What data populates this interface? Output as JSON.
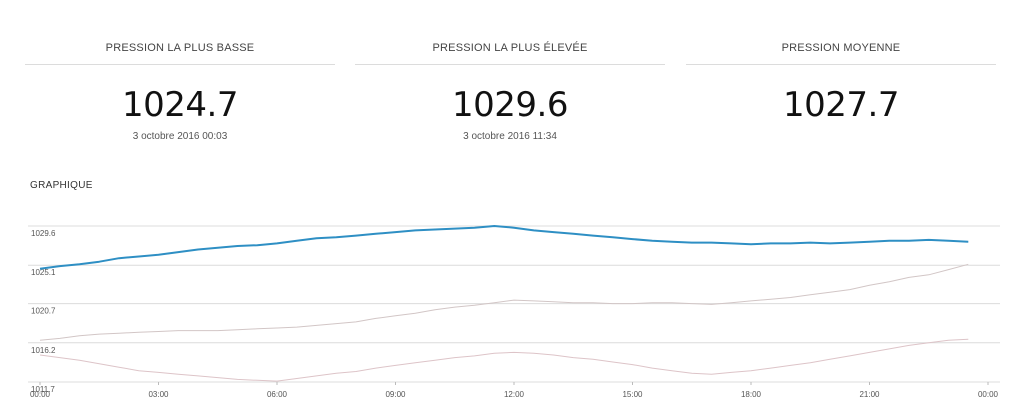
{
  "stats": {
    "low": {
      "label": "PRESSION LA PLUS BASSE",
      "value": "1024.7",
      "date": "3 octobre 2016 00:03"
    },
    "high": {
      "label": "PRESSION LA PLUS ÉLEVÉE",
      "value": "1029.6",
      "date": "3 octobre 2016 11:34"
    },
    "avg": {
      "label": "PRESSION MOYENNE",
      "value": "1027.7",
      "date": ""
    }
  },
  "section_title": "GRAPHIQUE",
  "colors": {
    "main": "#2e8fc4",
    "previous_1": "#d2c6c6",
    "previous_2": "#ddc4c8",
    "grid": "#dcdcdc"
  },
  "chart_data": {
    "type": "line",
    "xlabel": "",
    "ylabel": "",
    "x_ticks": [
      "00:00",
      "03:00",
      "06:00",
      "09:00",
      "12:00",
      "15:00",
      "18:00",
      "21:00",
      "00:00"
    ],
    "y_ticks": [
      "1011.7",
      "1016.2",
      "1020.7",
      "1025.1",
      "1029.6"
    ],
    "ylim": [
      1011.7,
      1029.6
    ],
    "xlim": [
      0,
      24
    ],
    "grid": true,
    "series": [
      {
        "x": [
          0,
          0.5,
          1,
          1.5,
          2,
          2.5,
          3,
          3.5,
          4,
          4.5,
          5,
          5.5,
          6,
          6.5,
          7,
          7.5,
          8,
          8.5,
          9,
          9.5,
          10,
          10.5,
          11,
          11.5,
          12,
          12.5,
          13,
          13.5,
          14,
          14.5,
          15,
          15.5,
          16,
          16.5,
          17,
          17.5,
          18,
          18.5,
          19,
          19.5,
          20,
          20.5,
          21,
          21.5,
          22,
          22.5,
          23,
          23.5
        ],
        "values": [
          1024.7,
          1025.0,
          1025.2,
          1025.5,
          1025.9,
          1026.1,
          1026.3,
          1026.6,
          1026.9,
          1027.1,
          1027.3,
          1027.4,
          1027.6,
          1027.9,
          1028.2,
          1028.3,
          1028.5,
          1028.7,
          1028.9,
          1029.1,
          1029.2,
          1029.3,
          1029.4,
          1029.6,
          1029.4,
          1029.1,
          1028.9,
          1028.7,
          1028.5,
          1028.3,
          1028.1,
          1027.9,
          1027.8,
          1027.7,
          1027.7,
          1027.6,
          1027.5,
          1027.6,
          1027.6,
          1027.7,
          1027.6,
          1027.7,
          1027.8,
          1027.9,
          1027.9,
          1028.0,
          1027.9,
          1027.8
        ]
      },
      {
        "x": [
          0,
          0.5,
          1,
          1.5,
          2,
          2.5,
          3,
          3.5,
          4,
          4.5,
          5,
          5.5,
          6,
          6.5,
          7,
          7.5,
          8,
          8.5,
          9,
          9.5,
          10,
          10.5,
          11,
          11.5,
          12,
          12.5,
          13,
          13.5,
          14,
          14.5,
          15,
          15.5,
          16,
          16.5,
          17,
          17.5,
          18,
          18.5,
          19,
          19.5,
          20,
          20.5,
          21,
          21.5,
          22,
          22.5,
          23,
          23.5
        ],
        "values": [
          1016.5,
          1016.7,
          1017.0,
          1017.2,
          1017.3,
          1017.4,
          1017.5,
          1017.6,
          1017.6,
          1017.6,
          1017.7,
          1017.8,
          1017.9,
          1018.0,
          1018.2,
          1018.4,
          1018.6,
          1019.0,
          1019.3,
          1019.6,
          1020.0,
          1020.3,
          1020.5,
          1020.8,
          1021.1,
          1021.0,
          1020.9,
          1020.8,
          1020.8,
          1020.7,
          1020.7,
          1020.8,
          1020.8,
          1020.7,
          1020.6,
          1020.8,
          1021.0,
          1021.2,
          1021.4,
          1021.7,
          1022.0,
          1022.3,
          1022.8,
          1023.2,
          1023.7,
          1024.0,
          1024.6,
          1025.2
        ]
      },
      {
        "x": [
          0,
          0.5,
          1,
          1.5,
          2,
          2.5,
          3,
          3.5,
          4,
          4.5,
          5,
          5.5,
          6,
          6.5,
          7,
          7.5,
          8,
          8.5,
          9,
          9.5,
          10,
          10.5,
          11,
          11.5,
          12,
          12.5,
          13,
          13.5,
          14,
          14.5,
          15,
          15.5,
          16,
          16.5,
          17,
          17.5,
          18,
          18.5,
          19,
          19.5,
          20,
          20.5,
          21,
          21.5,
          22,
          22.5,
          23,
          23.5
        ],
        "values": [
          1014.8,
          1014.5,
          1014.2,
          1013.8,
          1013.4,
          1013.0,
          1012.8,
          1012.6,
          1012.4,
          1012.2,
          1012.0,
          1011.9,
          1011.8,
          1012.1,
          1012.4,
          1012.7,
          1012.9,
          1013.3,
          1013.6,
          1013.9,
          1014.2,
          1014.5,
          1014.7,
          1015.0,
          1015.1,
          1015.0,
          1014.8,
          1014.5,
          1014.3,
          1014.0,
          1013.7,
          1013.3,
          1013.0,
          1012.7,
          1012.6,
          1012.8,
          1013.0,
          1013.3,
          1013.6,
          1013.9,
          1014.3,
          1014.7,
          1015.1,
          1015.5,
          1015.9,
          1016.2,
          1016.5,
          1016.6
        ]
      }
    ]
  }
}
